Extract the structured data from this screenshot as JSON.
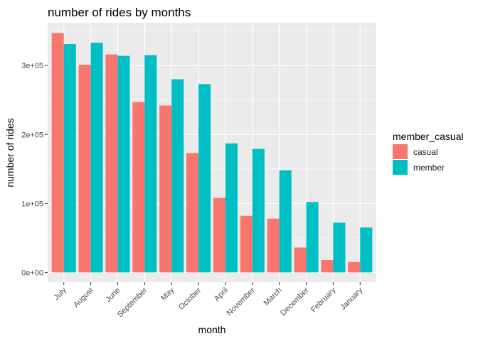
{
  "chart_data": {
    "type": "bar",
    "title": "number of rides by months",
    "xlabel": "month",
    "ylabel": "number of rides",
    "categories": [
      "July",
      "August",
      "June",
      "September",
      "May",
      "October",
      "April",
      "November",
      "March",
      "December",
      "February",
      "January"
    ],
    "series": [
      {
        "name": "casual",
        "color": "#F8766D",
        "values": [
          347000,
          301000,
          316000,
          247000,
          242000,
          173000,
          108000,
          82000,
          78000,
          36000,
          18000,
          15000
        ]
      },
      {
        "name": "member",
        "color": "#00BFC4",
        "values": [
          331000,
          333000,
          314000,
          315000,
          280000,
          273000,
          187000,
          179000,
          148000,
          102000,
          72000,
          65000
        ]
      }
    ],
    "ylim": [
      -14000,
      362000
    ],
    "yticks": [
      0,
      100000,
      200000,
      300000
    ],
    "ytick_labels": [
      "0e+00",
      "1e+05",
      "2e+05",
      "3e+05"
    ],
    "grid": true,
    "panel_color": "#EBEBEB",
    "legend": {
      "title": "member_casual",
      "placement": "right"
    }
  }
}
